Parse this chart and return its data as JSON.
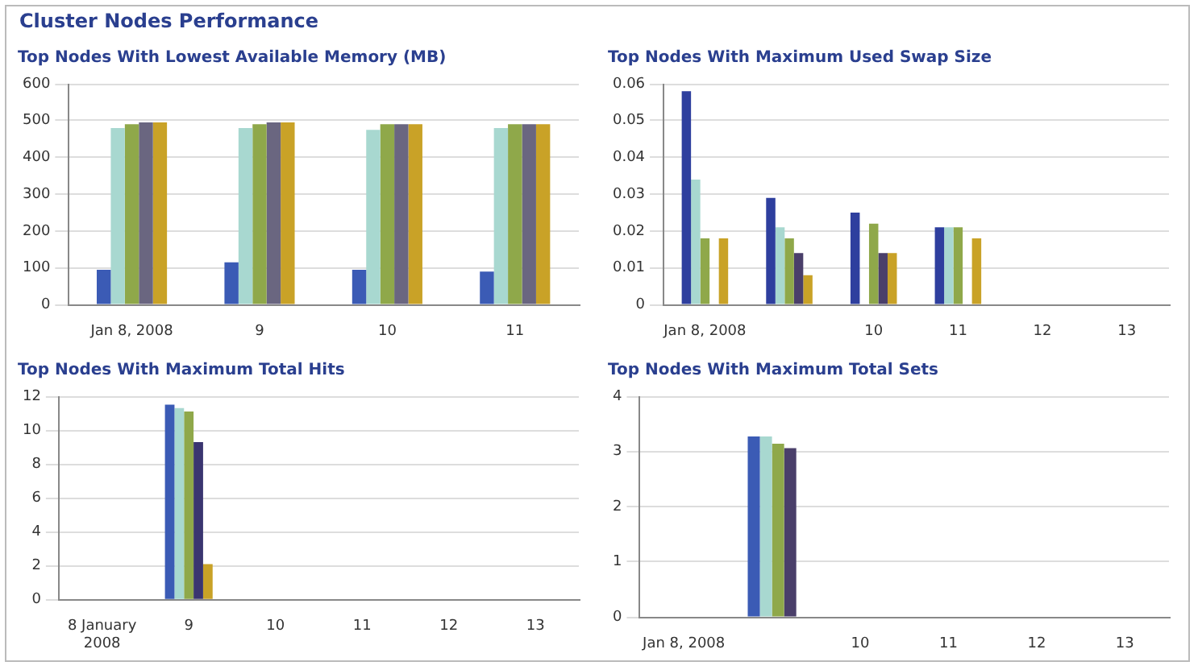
{
  "chart_data": [
    {
      "type": "bar",
      "title": "Top Nodes With Lowest Available Memory (MB)",
      "annotations": [
        "Cluster Nodes Performance"
      ],
      "categories": [
        "Jan 8, 2008",
        "9",
        "10",
        "11"
      ],
      "series": [
        {
          "color": "#3b5bb5",
          "values": [
            95,
            115,
            95,
            90
          ]
        },
        {
          "color": "#a8d8d0",
          "values": [
            480,
            480,
            475,
            480
          ]
        },
        {
          "color": "#8fa84a",
          "values": [
            490,
            490,
            490,
            490
          ]
        },
        {
          "color": "#6a6680",
          "values": [
            495,
            495,
            490,
            490
          ]
        },
        {
          "color": "#c9a227",
          "values": [
            495,
            495,
            490,
            490
          ]
        }
      ],
      "ylim": [
        0,
        600
      ],
      "yticks": [
        0,
        100,
        200,
        300,
        400,
        500,
        600
      ],
      "grid": "y",
      "legend": false
    },
    {
      "type": "bar",
      "title": "Top Nodes With Maximum Used Swap Size",
      "categories": [
        "Jan 8, 2008",
        null,
        "10",
        "11",
        "12",
        "13"
      ],
      "series": [
        {
          "color": "#2e3f9e",
          "values": [
            0.058,
            0.029,
            0.025,
            0.021,
            null,
            null
          ]
        },
        {
          "color": "#a8d8d0",
          "values": [
            0.034,
            0.021,
            null,
            0.021,
            null,
            null
          ]
        },
        {
          "color": "#8fa84a",
          "values": [
            0.018,
            0.018,
            0.022,
            0.021,
            null,
            null
          ]
        },
        {
          "color": "#4a3f6a",
          "values": [
            null,
            0.014,
            0.014,
            null,
            null,
            null
          ]
        },
        {
          "color": "#c9a227",
          "values": [
            0.018,
            0.008,
            0.014,
            0.018,
            null,
            null
          ]
        }
      ],
      "ylim": [
        0,
        0.06
      ],
      "yticks": [
        0,
        0.01,
        0.02,
        0.03,
        0.04,
        0.05,
        0.06
      ],
      "grid": "y",
      "legend": false
    },
    {
      "type": "bar",
      "title": "Top Nodes With Maximum Total Hits",
      "categories": [
        "8 January 2008",
        "9",
        "10",
        "11",
        "12",
        "13"
      ],
      "series": [
        {
          "color": "#3b5bb5",
          "values": [
            0,
            11.5,
            0,
            0,
            0,
            0
          ]
        },
        {
          "color": "#a8d8d0",
          "values": [
            0,
            11.3,
            0,
            0,
            0,
            0
          ]
        },
        {
          "color": "#8fa84a",
          "values": [
            0,
            11.1,
            0,
            0,
            0,
            0
          ]
        },
        {
          "color": "#3a3570",
          "values": [
            0,
            9.3,
            0,
            0,
            0,
            0
          ]
        },
        {
          "color": "#c9a227",
          "values": [
            0,
            2.1,
            0,
            0,
            0,
            0
          ]
        }
      ],
      "ylim": [
        0,
        12
      ],
      "yticks": [
        0,
        2,
        4,
        6,
        8,
        10,
        12
      ],
      "grid": "y",
      "legend": false
    },
    {
      "type": "bar",
      "title": "Top Nodes With Maximum Total Sets",
      "categories": [
        "Jan 8, 2008",
        null,
        "10",
        "11",
        "12",
        "13"
      ],
      "series": [
        {
          "color": "#3b5bb5",
          "values": [
            0,
            3.27,
            0,
            0,
            0,
            0
          ]
        },
        {
          "color": "#a8d8d0",
          "values": [
            0,
            3.27,
            0,
            0,
            0,
            0
          ]
        },
        {
          "color": "#8fa84a",
          "values": [
            0,
            3.14,
            0,
            0,
            0,
            0
          ]
        },
        {
          "color": "#4a3f6a",
          "values": [
            0,
            3.06,
            0,
            0,
            0,
            0
          ]
        }
      ],
      "ylim": [
        0,
        4
      ],
      "yticks": [
        0,
        1,
        2,
        3,
        4
      ],
      "grid": "y",
      "legend": false
    }
  ]
}
